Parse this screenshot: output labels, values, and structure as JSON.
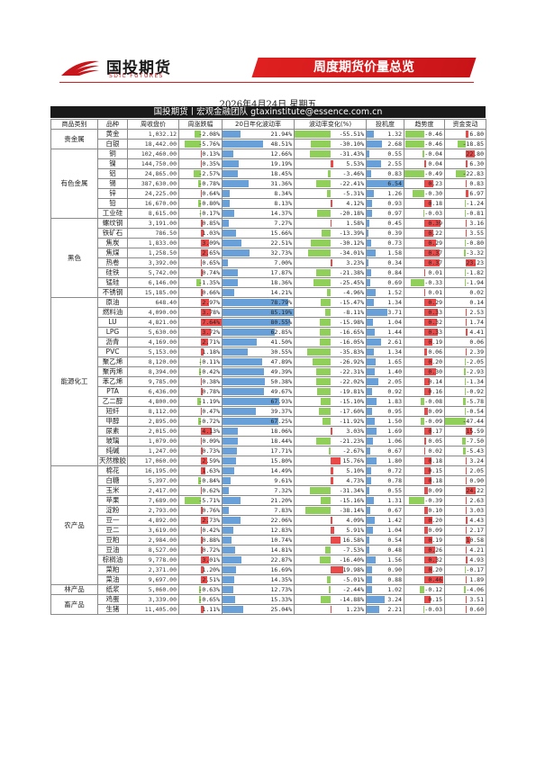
{
  "logo": {
    "name": "国投期货",
    "sub": "SDIC FUTURES"
  },
  "banner": "周度期货价量总览",
  "date": "2026年4月24日 星期五",
  "team": "国投期货丨宏观金融团队  gtaxinstitute@essence.com.cn",
  "headers": [
    "商品类别",
    "品种",
    "周收盘价",
    "周涨跌幅",
    "20日年化波动率",
    "波动率变化(%)",
    "投机度",
    "趋势度",
    "资金变动"
  ],
  "colors": {
    "red": "#e84a4a",
    "green": "#8fcf5a",
    "blue": "#6aa0d8"
  },
  "groups": [
    {
      "name": "贵金属",
      "rows": [
        [
          "黄金",
          "1,032.12",
          "-2.08%",
          "21.94%",
          "-55.51%",
          "1.32",
          "-0.46",
          "6.80"
        ],
        [
          "白银",
          "18,442.00",
          "-5.76%",
          "48.51%",
          "-30.10%",
          "2.68",
          "-0.46",
          "-18.85"
        ]
      ]
    },
    {
      "name": "有色金属",
      "rows": [
        [
          "铜",
          "102,460.00",
          "0.13%",
          "12.66%",
          "-31.43%",
          "0.55",
          "-0.04",
          "22.80"
        ],
        [
          "镍",
          "144,750.00",
          "0.35%",
          "19.19%",
          "5.53%",
          "2.55",
          "0.04",
          "6.30"
        ],
        [
          "铝",
          "24,865.00",
          "-2.57%",
          "18.45%",
          "-3.46%",
          "0.83",
          "-0.49",
          "-22.83"
        ],
        [
          "锡",
          "387,630.00",
          "-0.78%",
          "31.36%",
          "-22.41%",
          "6.54",
          "0.23",
          "0.83"
        ],
        [
          "锌",
          "24,225.00",
          "0.64%",
          "8.34%",
          "-5.31%",
          "1.26",
          "-0.30",
          "6.97"
        ],
        [
          "铅",
          "16,670.00",
          "-0.80%",
          "8.13%",
          "4.12%",
          "0.93",
          "0.18",
          "-1.24"
        ],
        [
          "工业硅",
          "8,615.00",
          "-0.17%",
          "14.37%",
          "-20.18%",
          "0.97",
          "-0.03",
          "-0.81"
        ]
      ]
    },
    {
      "name": "黑色",
      "rows": [
        [
          "螺纹钢",
          "3,191.00",
          "0.85%",
          "7.27%",
          "1.58%",
          "0.45",
          "0.39",
          "3.16"
        ],
        [
          "铁矿石",
          "786.50",
          "1.03%",
          "15.66%",
          "-13.39%",
          "0.39",
          "0.22",
          "3.55"
        ],
        [
          "焦炭",
          "1,833.00",
          "3.09%",
          "22.51%",
          "-30.12%",
          "0.73",
          "0.29",
          "-0.80"
        ],
        [
          "焦煤",
          "1,258.50",
          "2.65%",
          "32.73%",
          "-34.01%",
          "1.58",
          "0.37",
          "-3.32"
        ],
        [
          "热卷",
          "3,392.00",
          "0.65%",
          "7.00%",
          "3.23%",
          "0.34",
          "0.37",
          "23.23"
        ],
        [
          "硅铁",
          "5,742.00",
          "0.74%",
          "17.87%",
          "-21.38%",
          "0.84",
          "0.01",
          "-1.82"
        ],
        [
          "锰硅",
          "6,146.00",
          "-1.35%",
          "18.36%",
          "-25.45%",
          "0.69",
          "-0.33",
          "-1.94"
        ],
        [
          "不锈钢",
          "15,185.00",
          "0.66%",
          "14.21%",
          "-4.96%",
          "1.52",
          "0.01",
          "0.02"
        ]
      ]
    },
    {
      "name": "能源化工",
      "rows": [
        [
          "原油",
          "648.40",
          "2.97%",
          "78.79%",
          "-15.47%",
          "1.34",
          "0.29",
          "0.14"
        ],
        [
          "燃料油",
          "4,090.00",
          "3.78%",
          "85.19%",
          "-8.11%",
          "3.71",
          "0.33",
          "2.53"
        ],
        [
          "LU",
          "4,821.00",
          "7.64%",
          "80.55%",
          "-15.98%",
          "1.04",
          "0.32",
          "1.74"
        ],
        [
          "LPG",
          "5,630.00",
          "3.72%",
          "62.85%",
          "-16.65%",
          "1.44",
          "0.33",
          "4.41"
        ],
        [
          "沥青",
          "4,169.00",
          "2.71%",
          "41.50%",
          "-16.05%",
          "2.61",
          "0.19",
          "0.06"
        ],
        [
          "PVC",
          "5,153.00",
          "1.18%",
          "30.55%",
          "-35.83%",
          "1.34",
          "0.06",
          "2.39"
        ],
        [
          "聚乙烯",
          "8,120.00",
          "-0.11%",
          "47.89%",
          "-26.92%",
          "1.65",
          "0.20",
          "-2.05"
        ],
        [
          "聚丙烯",
          "8,394.00",
          "-0.42%",
          "49.39%",
          "-22.31%",
          "1.40",
          "0.30",
          "-2.93"
        ],
        [
          "苯乙烯",
          "9,785.00",
          "0.38%",
          "50.38%",
          "-22.02%",
          "2.05",
          "0.14",
          "-1.34"
        ],
        [
          "PTA",
          "6,436.00",
          "0.78%",
          "49.67%",
          "-19.81%",
          "0.92",
          "0.16",
          "-0.92"
        ],
        [
          "乙二醇",
          "4,800.00",
          "-1.19%",
          "67.93%",
          "-15.10%",
          "1.83",
          "-0.08",
          "-5.78"
        ],
        [
          "短纤",
          "8,112.00",
          "0.47%",
          "39.37%",
          "-17.60%",
          "0.95",
          "0.09",
          "-0.54"
        ],
        [
          "甲醇",
          "2,895.00",
          "-0.72%",
          "67.25%",
          "-11.92%",
          "1.50",
          "-0.09",
          "-47.44"
        ],
        [
          "尿素",
          "2,015.00",
          "4.13%",
          "18.06%",
          "3.03%",
          "1.69",
          "0.17",
          "15.59"
        ],
        [
          "玻璃",
          "1,079.00",
          "0.09%",
          "18.44%",
          "-21.23%",
          "1.06",
          "0.05",
          "-7.50"
        ],
        [
          "纯碱",
          "1,247.00",
          "0.73%",
          "17.71%",
          "-2.67%",
          "0.67",
          "0.02",
          "-5.43"
        ],
        [
          "天然橡胶",
          "17,060.00",
          "2.59%",
          "15.80%",
          "15.76%",
          "1.80",
          "0.18",
          "3.24"
        ]
      ]
    },
    {
      "name": "农产品",
      "rows": [
        [
          "棉花",
          "16,195.00",
          "1.63%",
          "14.49%",
          "5.10%",
          "0.72",
          "0.15",
          "2.05"
        ],
        [
          "白糖",
          "5,397.00",
          "-0.84%",
          "9.61%",
          "4.73%",
          "0.78",
          "0.18",
          "0.90"
        ],
        [
          "玉米",
          "2,417.00",
          "0.62%",
          "7.32%",
          "-31.34%",
          "0.55",
          "0.09",
          "24.22"
        ],
        [
          "苹果",
          "7,689.00",
          "-5.71%",
          "21.20%",
          "-15.16%",
          "1.31",
          "-0.39",
          "2.63"
        ],
        [
          "淀粉",
          "2,793.00",
          "0.76%",
          "7.83%",
          "-38.14%",
          "0.67",
          "0.10",
          "3.03"
        ],
        [
          "豆一",
          "4,892.00",
          "2.73%",
          "22.06%",
          "4.09%",
          "1.42",
          "0.20",
          "4.43"
        ],
        [
          "豆二",
          "3,619.00",
          "0.42%",
          "12.83%",
          "5.91%",
          "1.04",
          "0.09",
          "2.17"
        ],
        [
          "豆粕",
          "2,984.00",
          "0.88%",
          "10.74%",
          "16.58%",
          "0.54",
          "0.19",
          "10.58"
        ],
        [
          "豆油",
          "8,527.00",
          "0.72%",
          "14.81%",
          "-7.53%",
          "0.48",
          "0.26",
          "4.21"
        ],
        [
          "棕榈油",
          "9,778.00",
          "3.01%",
          "22.87%",
          "-16.40%",
          "1.56",
          "0.32",
          "4.93"
        ],
        [
          "菜粕",
          "2,371.00",
          "1.20%",
          "16.69%",
          "19.98%",
          "0.90",
          "0.20",
          "-0.17"
        ],
        [
          "菜油",
          "9,697.00",
          "2.51%",
          "14.35%",
          "-5.01%",
          "0.88",
          "0.46",
          "1.89"
        ]
      ]
    },
    {
      "name": "林产品",
      "rows": [
        [
          "纸浆",
          "5,060.00",
          "-0.63%",
          "12.73%",
          "-2.44%",
          "1.02",
          "-0.12",
          "-4.06"
        ]
      ]
    },
    {
      "name": "畜产品",
      "rows": [
        [
          "鸡蛋",
          "3,339.00",
          "-0.65%",
          "15.33%",
          "-14.88%",
          "3.24",
          "0.15",
          "3.51"
        ],
        [
          "生猪",
          "11,405.00",
          "1.11%",
          "25.04%",
          "1.23%",
          "2.21",
          "-0.03",
          "0.60"
        ]
      ]
    }
  ]
}
